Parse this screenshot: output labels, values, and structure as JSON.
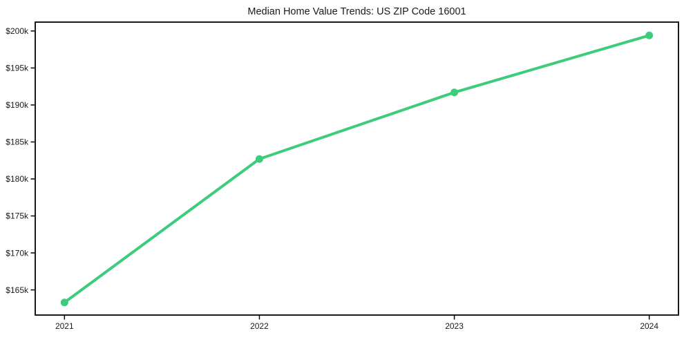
{
  "chart_data": {
    "type": "line",
    "title": "Median Home Value Trends: US ZIP Code 16001",
    "xlabel": "",
    "ylabel": "",
    "x": [
      2021,
      2022,
      2023,
      2024
    ],
    "values": [
      163300,
      182700,
      191700,
      199400
    ],
    "x_tick_labels": [
      "2021",
      "2022",
      "2023",
      "2024"
    ],
    "y_ticks": [
      {
        "value": 165000,
        "label": "$165k"
      },
      {
        "value": 170000,
        "label": "$170k"
      },
      {
        "value": 175000,
        "label": "$175k"
      },
      {
        "value": 180000,
        "label": "$180k"
      },
      {
        "value": 185000,
        "label": "$185k"
      },
      {
        "value": 190000,
        "label": "$190k"
      },
      {
        "value": 195000,
        "label": "$195k"
      },
      {
        "value": 200000,
        "label": "$200k"
      }
    ],
    "xlim": [
      2020.85,
      2024.15
    ],
    "ylim": [
      161600,
      201200
    ],
    "grid": false,
    "legend": "none",
    "marker": "circle",
    "colors": {
      "line": "#3dcc7b",
      "axis": "#000000",
      "text": "#1a1a1a",
      "background": "#ffffff"
    }
  }
}
